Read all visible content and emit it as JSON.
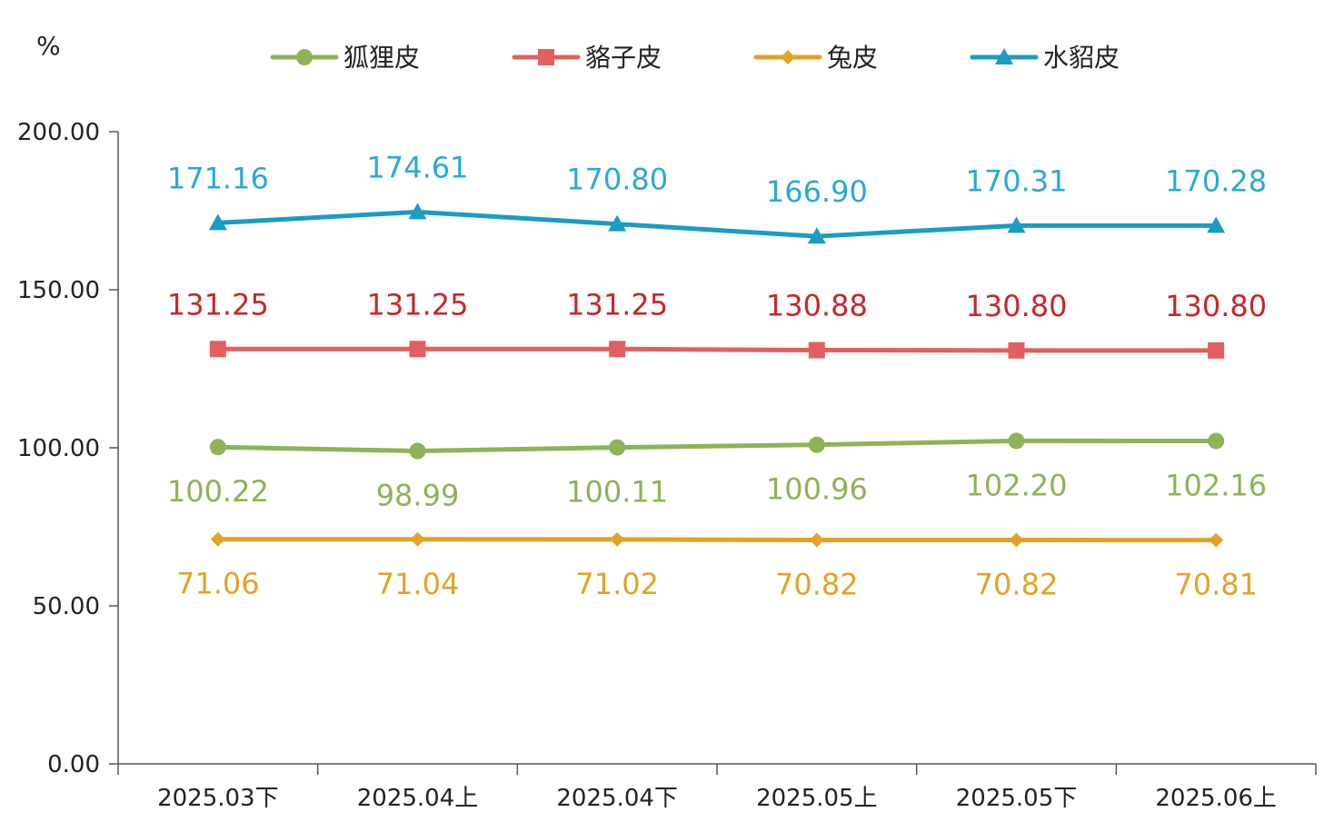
{
  "chart_data": {
    "type": "line",
    "title": "",
    "xlabel": "",
    "ylabel": "%",
    "ylim": [
      0,
      200
    ],
    "yticks": [
      "0.00",
      "50.00",
      "100.00",
      "150.00",
      "200.00"
    ],
    "categories": [
      "2025.03下",
      "2025.04上",
      "2025.04下",
      "2025.05上",
      "2025.05下",
      "2025.06上"
    ],
    "grid": false,
    "legend_position": "top",
    "series": [
      {
        "name": "狐狸皮",
        "marker": "circle",
        "color": "#8db356",
        "label_color": "#8db356",
        "label_position": "below",
        "values": [
          100.22,
          98.99,
          100.11,
          100.96,
          102.2,
          102.16
        ],
        "labels": [
          "100.22",
          "98.99",
          "100.11",
          "100.96",
          "102.20",
          "102.16"
        ]
      },
      {
        "name": "貉子皮",
        "marker": "square",
        "color": "#e35f5f",
        "label_color": "#c8262c",
        "label_position": "above",
        "values": [
          131.25,
          131.25,
          131.25,
          130.88,
          130.8,
          130.8
        ],
        "labels": [
          "131.25",
          "131.25",
          "131.25",
          "130.88",
          "130.80",
          "130.80"
        ]
      },
      {
        "name": "兔皮",
        "marker": "diamond",
        "color": "#e3a226",
        "label_color": "#e3a226",
        "label_position": "below",
        "values": [
          71.06,
          71.04,
          71.02,
          70.82,
          70.82,
          70.81
        ],
        "labels": [
          "71.06",
          "71.04",
          "71.02",
          "70.82",
          "70.82",
          "70.81"
        ]
      },
      {
        "name": "水貂皮",
        "marker": "triangle",
        "color": "#1a9cc4",
        "label_color": "#2aa8d8",
        "label_position": "above",
        "values": [
          171.16,
          174.61,
          170.8,
          166.9,
          170.31,
          170.28
        ],
        "labels": [
          "171.16",
          "174.61",
          "170.80",
          "166.90",
          "170.31",
          "170.28"
        ]
      }
    ]
  }
}
